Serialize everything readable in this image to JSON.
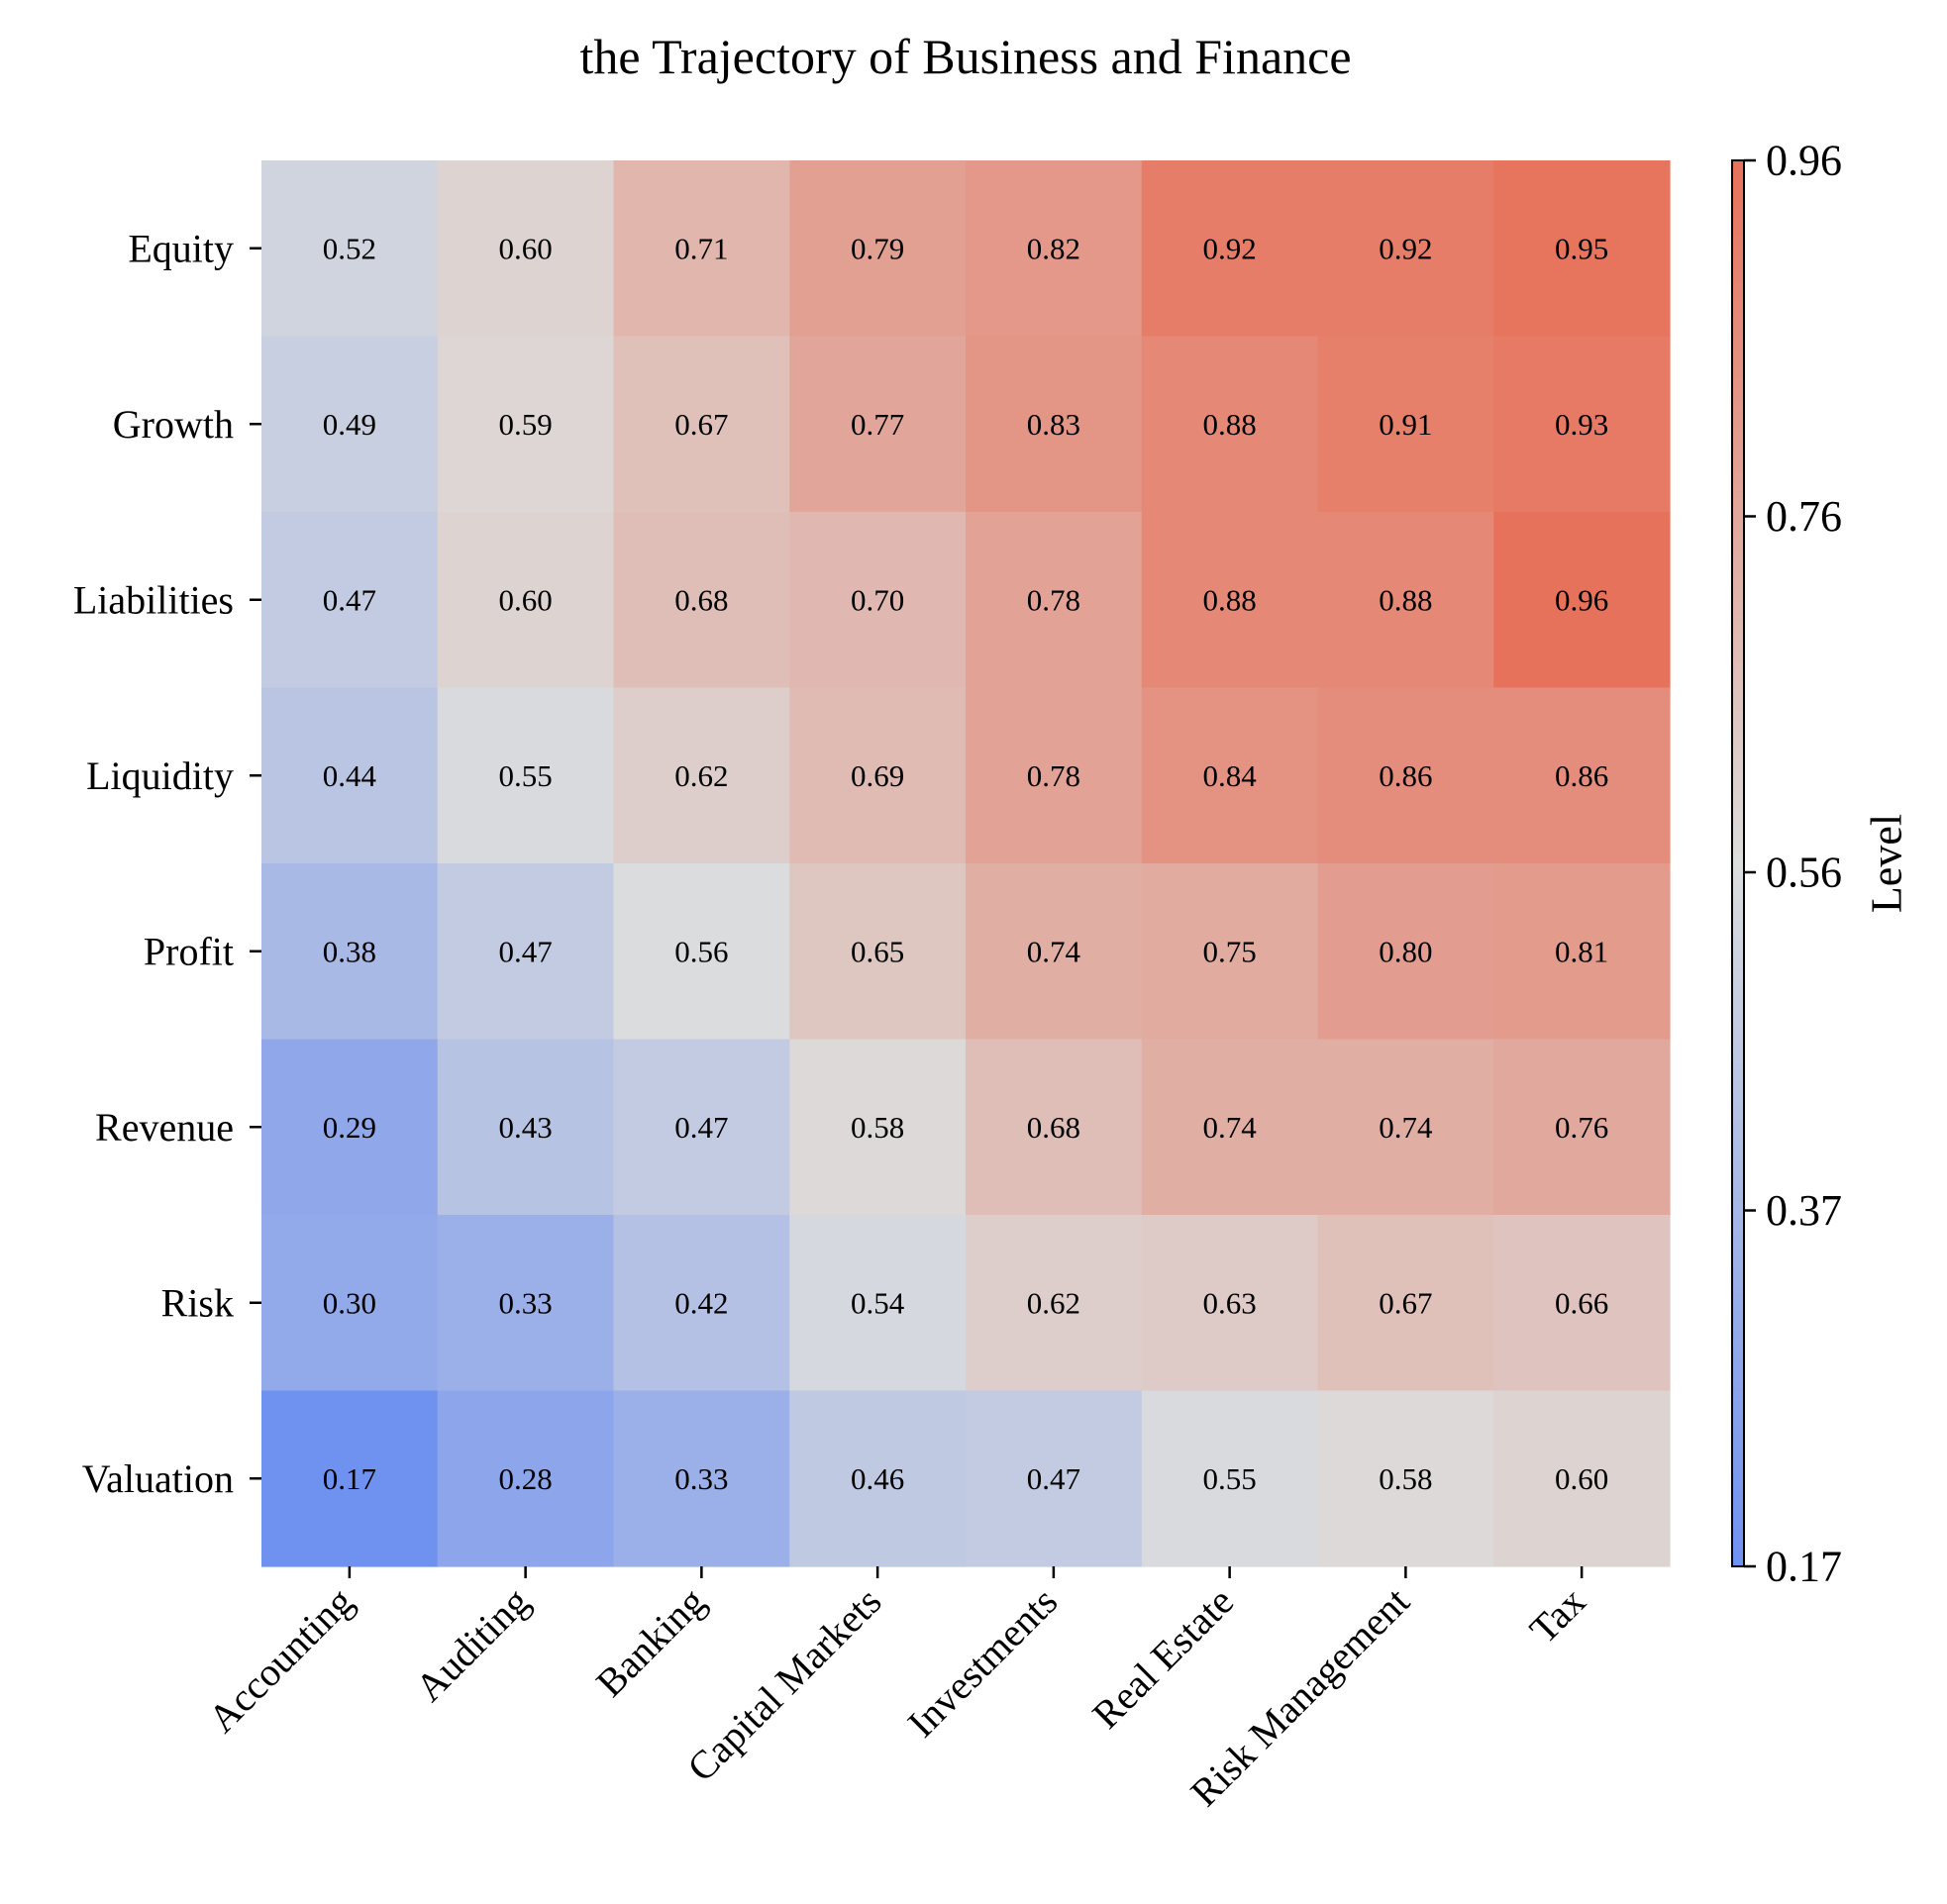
{
  "chart_data": {
    "type": "heatmap",
    "title": "the Trajectory of Business and Finance",
    "xlabel": "",
    "ylabel": "",
    "x_categories": [
      "Accounting",
      "Auditing",
      "Banking",
      "Capital Markets",
      "Investments",
      "Real Estate",
      "Risk Management",
      "Tax"
    ],
    "y_categories": [
      "Equity",
      "Growth",
      "Liabilities",
      "Liquidity",
      "Profit",
      "Revenue",
      "Risk",
      "Valuation"
    ],
    "values": [
      [
        0.52,
        0.6,
        0.71,
        0.79,
        0.82,
        0.92,
        0.92,
        0.95
      ],
      [
        0.49,
        0.59,
        0.67,
        0.77,
        0.83,
        0.88,
        0.91,
        0.93
      ],
      [
        0.47,
        0.6,
        0.68,
        0.7,
        0.78,
        0.88,
        0.88,
        0.96
      ],
      [
        0.44,
        0.55,
        0.62,
        0.69,
        0.78,
        0.84,
        0.86,
        0.86
      ],
      [
        0.38,
        0.47,
        0.56,
        0.65,
        0.74,
        0.75,
        0.8,
        0.81
      ],
      [
        0.29,
        0.43,
        0.47,
        0.58,
        0.68,
        0.74,
        0.74,
        0.76
      ],
      [
        0.3,
        0.33,
        0.42,
        0.54,
        0.62,
        0.63,
        0.67,
        0.66
      ],
      [
        0.17,
        0.28,
        0.33,
        0.46,
        0.47,
        0.55,
        0.58,
        0.6
      ]
    ],
    "value_format": "0.00",
    "colormap": "coolwarm",
    "colorbar": {
      "label": "Level",
      "range": [
        0.17,
        0.96
      ],
      "ticks": [
        "0.17",
        "0.37",
        "0.56",
        "0.76",
        "0.96"
      ],
      "colors": [
        "#6f91f0",
        "#dcdddd",
        "#e7725b"
      ]
    },
    "grid": false,
    "legend": "none"
  }
}
